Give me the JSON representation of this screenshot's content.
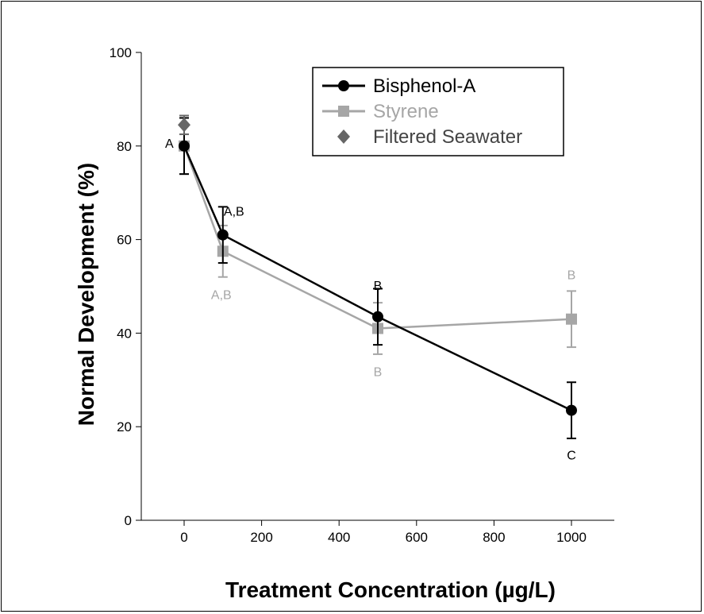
{
  "chart_data": {
    "type": "line",
    "xlabel": "Treatment Concentration (µg/L)",
    "ylabel": "Normal Development (%)",
    "xlim": [
      -130,
      1140
    ],
    "ylim": [
      0,
      100
    ],
    "xticks": [
      0,
      200,
      400,
      600,
      800,
      1000
    ],
    "yticks": [
      0,
      20,
      40,
      60,
      80,
      100
    ],
    "legend_position": "top-right",
    "series": [
      {
        "name": "Bisphenol-A",
        "color": "#000000",
        "marker": "circle",
        "points": [
          {
            "x": 0,
            "y": 80,
            "err": 6,
            "label": "A"
          },
          {
            "x": 100,
            "y": 61,
            "err": 6,
            "label": "A,B"
          },
          {
            "x": 500,
            "y": 43.5,
            "err": 6,
            "label": "B"
          },
          {
            "x": 1000,
            "y": 23.5,
            "err": 6,
            "label": "C"
          }
        ]
      },
      {
        "name": "Styrene",
        "color": "#a6a6a6",
        "marker": "square",
        "points": [
          {
            "x": 0,
            "y": 80,
            "err": 6,
            "label": ""
          },
          {
            "x": 100,
            "y": 57.5,
            "err": 5.5,
            "label": "A,B"
          },
          {
            "x": 500,
            "y": 41,
            "err": 5.5,
            "label": "B"
          },
          {
            "x": 1000,
            "y": 43,
            "err": 6,
            "label": "B"
          }
        ]
      },
      {
        "name": "Filtered Seawater",
        "color": "#666666",
        "marker": "diamond",
        "points": [
          {
            "x": 0,
            "y": 84.5,
            "err": 2,
            "label": ""
          }
        ]
      }
    ]
  }
}
